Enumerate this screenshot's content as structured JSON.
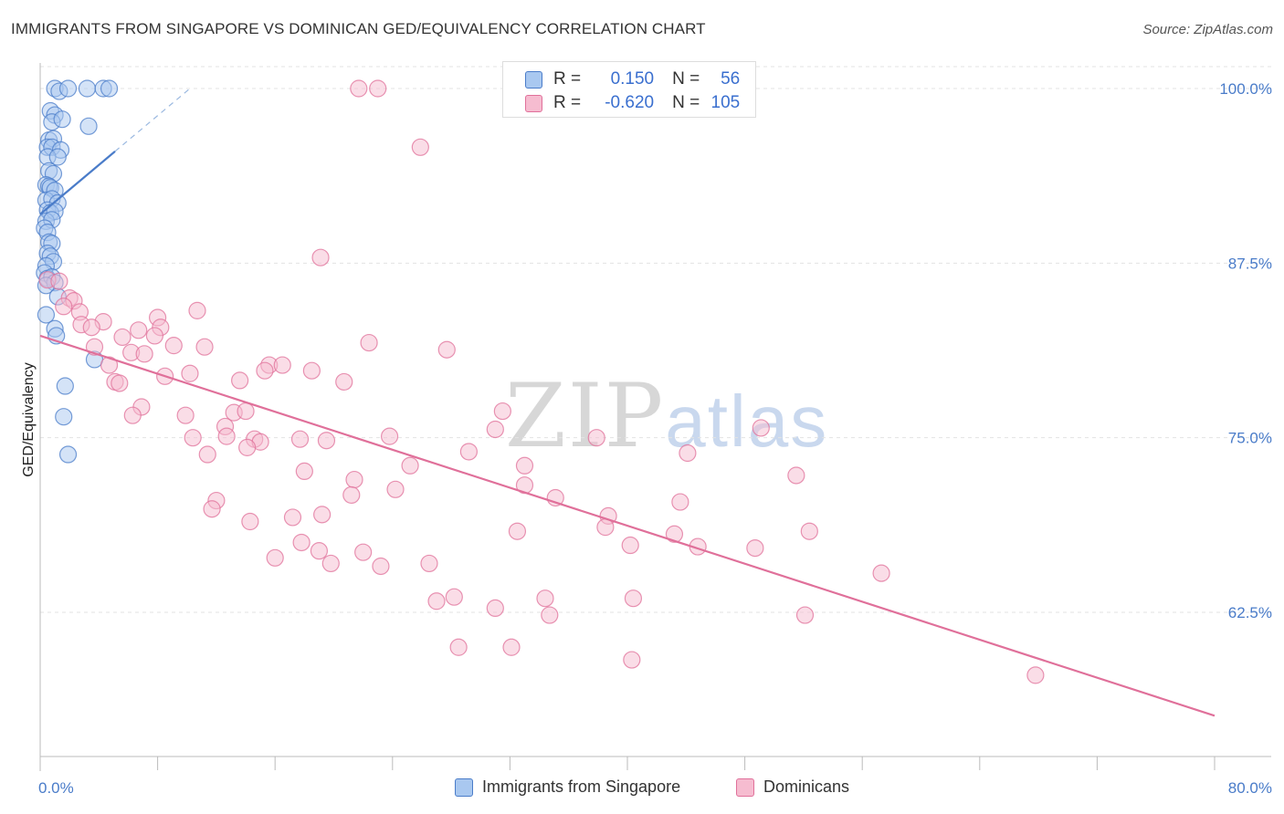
{
  "title": "IMMIGRANTS FROM SINGAPORE VS DOMINICAN GED/EQUIVALENCY CORRELATION CHART",
  "source": "Source: ZipAtlas.com",
  "watermark": {
    "zip": "ZIP",
    "atlas": "atlas"
  },
  "colors": {
    "blue": "#4a7cc9",
    "blue_fill": "#a9c8f0",
    "pink": "#e0709a",
    "pink_fill": "#f6bcd0",
    "grid": "#e3e3e3"
  },
  "legend_top": {
    "rows": [
      {
        "r_label": "R = ",
        "r_value": "0.150",
        "n_label": "N = ",
        "n_value": "56"
      },
      {
        "r_label": "R = ",
        "r_value": "-0.620",
        "n_label": "N = ",
        "n_value": "105"
      }
    ]
  },
  "legend_bottom": [
    "Immigrants from Singapore",
    "Dominicans"
  ],
  "chart_data": {
    "type": "scatter",
    "title": "IMMIGRANTS FROM SINGAPORE VS DOMINICAN GED/EQUIVALENCY CORRELATION CHART",
    "xlabel": "",
    "ylabel": "GED/Equivalency",
    "xlim": [
      0,
      80
    ],
    "ylim": [
      50,
      101.5
    ],
    "x_tick_labels": [
      "0.0%",
      "80.0%"
    ],
    "y_ticks": [
      62.5,
      75.0,
      87.5,
      100.0
    ],
    "y_tick_labels": [
      "62.5%",
      "75.0%",
      "87.5%",
      "100.0%"
    ],
    "grid": true,
    "legend_placement": "bottom",
    "series": [
      {
        "name": "Immigrants from Singapore",
        "color": "#4a7cc9",
        "r": 0.15,
        "n": 56,
        "trend": {
          "x": [
            0,
            5.1
          ],
          "y": [
            91.0,
            95.5
          ],
          "dashed_to": [
            10.2,
            100.0
          ]
        },
        "points": [
          [
            1.0,
            100.0
          ],
          [
            1.3,
            99.8
          ],
          [
            1.9,
            100.0
          ],
          [
            3.2,
            100.0
          ],
          [
            4.3,
            100.0
          ],
          [
            4.7,
            100.0
          ],
          [
            0.7,
            98.4
          ],
          [
            1.0,
            98.1
          ],
          [
            0.8,
            97.6
          ],
          [
            1.5,
            97.8
          ],
          [
            3.3,
            97.3
          ],
          [
            0.6,
            96.3
          ],
          [
            0.9,
            96.4
          ],
          [
            0.5,
            95.8
          ],
          [
            0.8,
            95.8
          ],
          [
            1.4,
            95.6
          ],
          [
            0.5,
            95.1
          ],
          [
            1.2,
            95.1
          ],
          [
            0.6,
            94.1
          ],
          [
            0.9,
            93.9
          ],
          [
            0.4,
            93.1
          ],
          [
            0.6,
            93.0
          ],
          [
            0.7,
            92.9
          ],
          [
            1.0,
            92.7
          ],
          [
            0.4,
            92.0
          ],
          [
            0.8,
            92.1
          ],
          [
            1.2,
            91.8
          ],
          [
            0.5,
            91.3
          ],
          [
            0.7,
            91.1
          ],
          [
            1.0,
            91.2
          ],
          [
            0.4,
            90.5
          ],
          [
            0.8,
            90.6
          ],
          [
            0.3,
            90.0
          ],
          [
            0.5,
            89.7
          ],
          [
            0.6,
            89.0
          ],
          [
            0.8,
            88.9
          ],
          [
            0.5,
            88.2
          ],
          [
            0.7,
            88.0
          ],
          [
            0.9,
            87.6
          ],
          [
            0.4,
            87.3
          ],
          [
            0.3,
            86.8
          ],
          [
            0.5,
            86.4
          ],
          [
            0.8,
            86.5
          ],
          [
            1.0,
            86.1
          ],
          [
            0.4,
            85.9
          ],
          [
            1.2,
            85.1
          ],
          [
            0.4,
            83.8
          ],
          [
            1.0,
            82.8
          ],
          [
            1.1,
            82.3
          ],
          [
            3.7,
            80.6
          ],
          [
            1.7,
            78.7
          ],
          [
            1.6,
            76.5
          ],
          [
            1.9,
            73.8
          ]
        ]
      },
      {
        "name": "Dominicans",
        "color": "#e0709a",
        "r": -0.62,
        "n": 105,
        "trend": {
          "x": [
            0,
            80
          ],
          "y": [
            82.3,
            55.1
          ]
        },
        "points": [
          [
            21.7,
            100.0
          ],
          [
            23.0,
            100.0
          ],
          [
            25.9,
            95.8
          ],
          [
            19.1,
            87.9
          ],
          [
            0.5,
            86.3
          ],
          [
            1.3,
            86.2
          ],
          [
            2.0,
            85.0
          ],
          [
            2.3,
            84.8
          ],
          [
            1.6,
            84.4
          ],
          [
            2.7,
            84.0
          ],
          [
            10.7,
            84.1
          ],
          [
            8.0,
            83.6
          ],
          [
            2.8,
            83.1
          ],
          [
            4.3,
            83.3
          ],
          [
            3.5,
            82.9
          ],
          [
            8.2,
            82.9
          ],
          [
            6.7,
            82.7
          ],
          [
            5.6,
            82.2
          ],
          [
            7.8,
            82.3
          ],
          [
            3.7,
            81.5
          ],
          [
            9.1,
            81.6
          ],
          [
            11.2,
            81.5
          ],
          [
            22.4,
            81.8
          ],
          [
            27.7,
            81.3
          ],
          [
            6.2,
            81.1
          ],
          [
            7.1,
            81.0
          ],
          [
            4.7,
            80.2
          ],
          [
            15.6,
            80.2
          ],
          [
            16.5,
            80.2
          ],
          [
            15.3,
            79.8
          ],
          [
            18.5,
            79.8
          ],
          [
            8.5,
            79.4
          ],
          [
            10.2,
            79.6
          ],
          [
            5.1,
            79.0
          ],
          [
            5.4,
            78.9
          ],
          [
            13.6,
            79.1
          ],
          [
            20.7,
            79.0
          ],
          [
            6.9,
            77.2
          ],
          [
            6.3,
            76.6
          ],
          [
            9.9,
            76.6
          ],
          [
            13.2,
            76.8
          ],
          [
            14.0,
            76.9
          ],
          [
            31.5,
            76.9
          ],
          [
            12.6,
            75.8
          ],
          [
            12.7,
            75.1
          ],
          [
            31.0,
            75.6
          ],
          [
            49.1,
            75.7
          ],
          [
            23.8,
            75.1
          ],
          [
            37.9,
            75.0
          ],
          [
            10.4,
            75.0
          ],
          [
            14.6,
            74.9
          ],
          [
            15.0,
            74.7
          ],
          [
            17.7,
            74.9
          ],
          [
            19.5,
            74.8
          ],
          [
            14.1,
            74.3
          ],
          [
            11.4,
            73.8
          ],
          [
            29.2,
            74.0
          ],
          [
            44.1,
            73.9
          ],
          [
            25.2,
            73.0
          ],
          [
            33.0,
            73.0
          ],
          [
            18.0,
            72.6
          ],
          [
            21.4,
            72.0
          ],
          [
            51.5,
            72.3
          ],
          [
            24.2,
            71.3
          ],
          [
            33.0,
            71.6
          ],
          [
            21.2,
            70.9
          ],
          [
            35.1,
            70.7
          ],
          [
            12.0,
            70.5
          ],
          [
            43.6,
            70.4
          ],
          [
            11.7,
            69.9
          ],
          [
            19.2,
            69.5
          ],
          [
            38.7,
            69.4
          ],
          [
            14.3,
            69.0
          ],
          [
            17.2,
            69.3
          ],
          [
            32.5,
            68.3
          ],
          [
            38.5,
            68.6
          ],
          [
            43.2,
            68.1
          ],
          [
            52.4,
            68.3
          ],
          [
            17.8,
            67.5
          ],
          [
            40.2,
            67.3
          ],
          [
            44.8,
            67.2
          ],
          [
            48.7,
            67.1
          ],
          [
            19.0,
            66.9
          ],
          [
            22.0,
            66.8
          ],
          [
            16.0,
            66.4
          ],
          [
            19.8,
            66.0
          ],
          [
            23.2,
            65.8
          ],
          [
            26.5,
            66.0
          ],
          [
            57.3,
            65.3
          ],
          [
            28.2,
            63.6
          ],
          [
            27.0,
            63.3
          ],
          [
            34.4,
            63.5
          ],
          [
            40.4,
            63.5
          ],
          [
            31.0,
            62.8
          ],
          [
            34.7,
            62.3
          ],
          [
            52.1,
            62.3
          ],
          [
            28.5,
            60.0
          ],
          [
            32.1,
            60.0
          ],
          [
            40.3,
            59.1
          ],
          [
            67.8,
            58.0
          ]
        ]
      }
    ]
  }
}
